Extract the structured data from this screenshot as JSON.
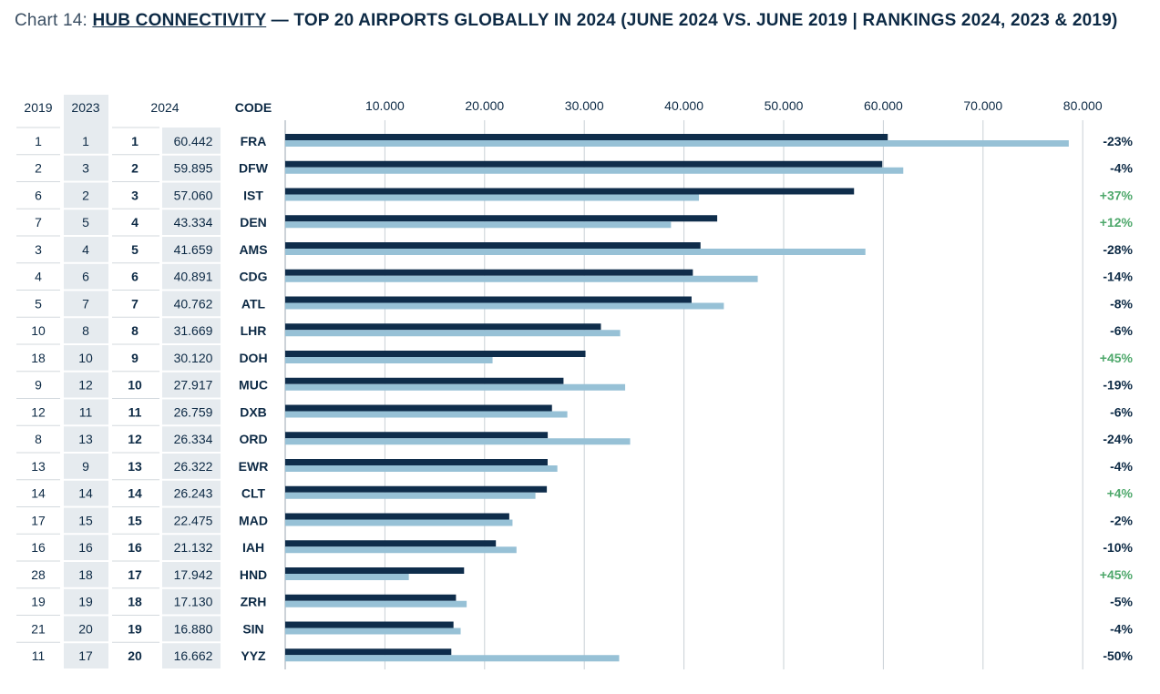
{
  "title": {
    "prefix": "Chart 14: ",
    "highlight": "HUB CONNECTIVITY",
    "rest": " — TOP 20 AIRPORTS GLOBALLY IN 2024 (JUNE 2024 VS. JUNE 2019 | RANKINGS 2024, 2023 & 2019)"
  },
  "columns": {
    "rank2019": "2019",
    "rank2023": "2023",
    "value2024": "2024",
    "code": "CODE"
  },
  "colors": {
    "series2024": "#0f2d4b",
    "series2019": "#97c1d6",
    "positive": "#4ea86b",
    "negative": "#0d2a45",
    "rankBg": "#e6ebef"
  },
  "chart_data": {
    "type": "bar",
    "orientation": "horizontal",
    "xlim": [
      0,
      80000
    ],
    "xticks": [
      "10.000",
      "20.000",
      "30.000",
      "40.000",
      "50.000",
      "60.000",
      "70.000",
      "80.000"
    ],
    "grid": "vertical",
    "categories": [
      "FRA",
      "DFW",
      "IST",
      "DEN",
      "AMS",
      "CDG",
      "ATL",
      "LHR",
      "DOH",
      "MUC",
      "DXB",
      "ORD",
      "EWR",
      "CLT",
      "MAD",
      "IAH",
      "HND",
      "ZRH",
      "SIN",
      "YYZ"
    ],
    "rank2019": [
      "1",
      "2",
      "6",
      "7",
      "3",
      "4",
      "5",
      "10",
      "18",
      "9",
      "12",
      "8",
      "13",
      "14",
      "17",
      "16",
      "28",
      "19",
      "21",
      "11"
    ],
    "rank2023": [
      "1",
      "3",
      "2",
      "5",
      "4",
      "6",
      "7",
      "8",
      "10",
      "12",
      "11",
      "13",
      "9",
      "14",
      "15",
      "16",
      "18",
      "19",
      "20",
      "17"
    ],
    "rank2024": [
      "1",
      "2",
      "3",
      "4",
      "5",
      "6",
      "7",
      "8",
      "9",
      "10",
      "11",
      "12",
      "13",
      "14",
      "15",
      "16",
      "17",
      "18",
      "19",
      "20"
    ],
    "value2024_labels": [
      "60.442",
      "59.895",
      "57.060",
      "43.334",
      "41.659",
      "40.891",
      "40.762",
      "31.669",
      "30.120",
      "27.917",
      "26.759",
      "26.334",
      "26.322",
      "26.243",
      "22.475",
      "21.132",
      "17.942",
      "17.130",
      "16.880",
      "16.662"
    ],
    "series": [
      {
        "values": [
          60442,
          59895,
          57060,
          43334,
          41659,
          40891,
          40762,
          31669,
          30120,
          27917,
          26759,
          26334,
          26322,
          26243,
          22475,
          21132,
          17942,
          17130,
          16880,
          16662
        ]
      },
      {
        "values": [
          78600,
          62000,
          41500,
          38700,
          58200,
          47400,
          44000,
          33600,
          20800,
          34100,
          28300,
          34600,
          27300,
          25100,
          22800,
          23200,
          12400,
          18200,
          17600,
          33500
        ]
      }
    ],
    "change": [
      "-23%",
      "-4%",
      "+37%",
      "+12%",
      "-28%",
      "-14%",
      "-8%",
      "-6%",
      "+45%",
      "-19%",
      "-6%",
      "-24%",
      "-4%",
      "+4%",
      "-2%",
      "-10%",
      "+45%",
      "-5%",
      "-4%",
      "-50%"
    ]
  }
}
